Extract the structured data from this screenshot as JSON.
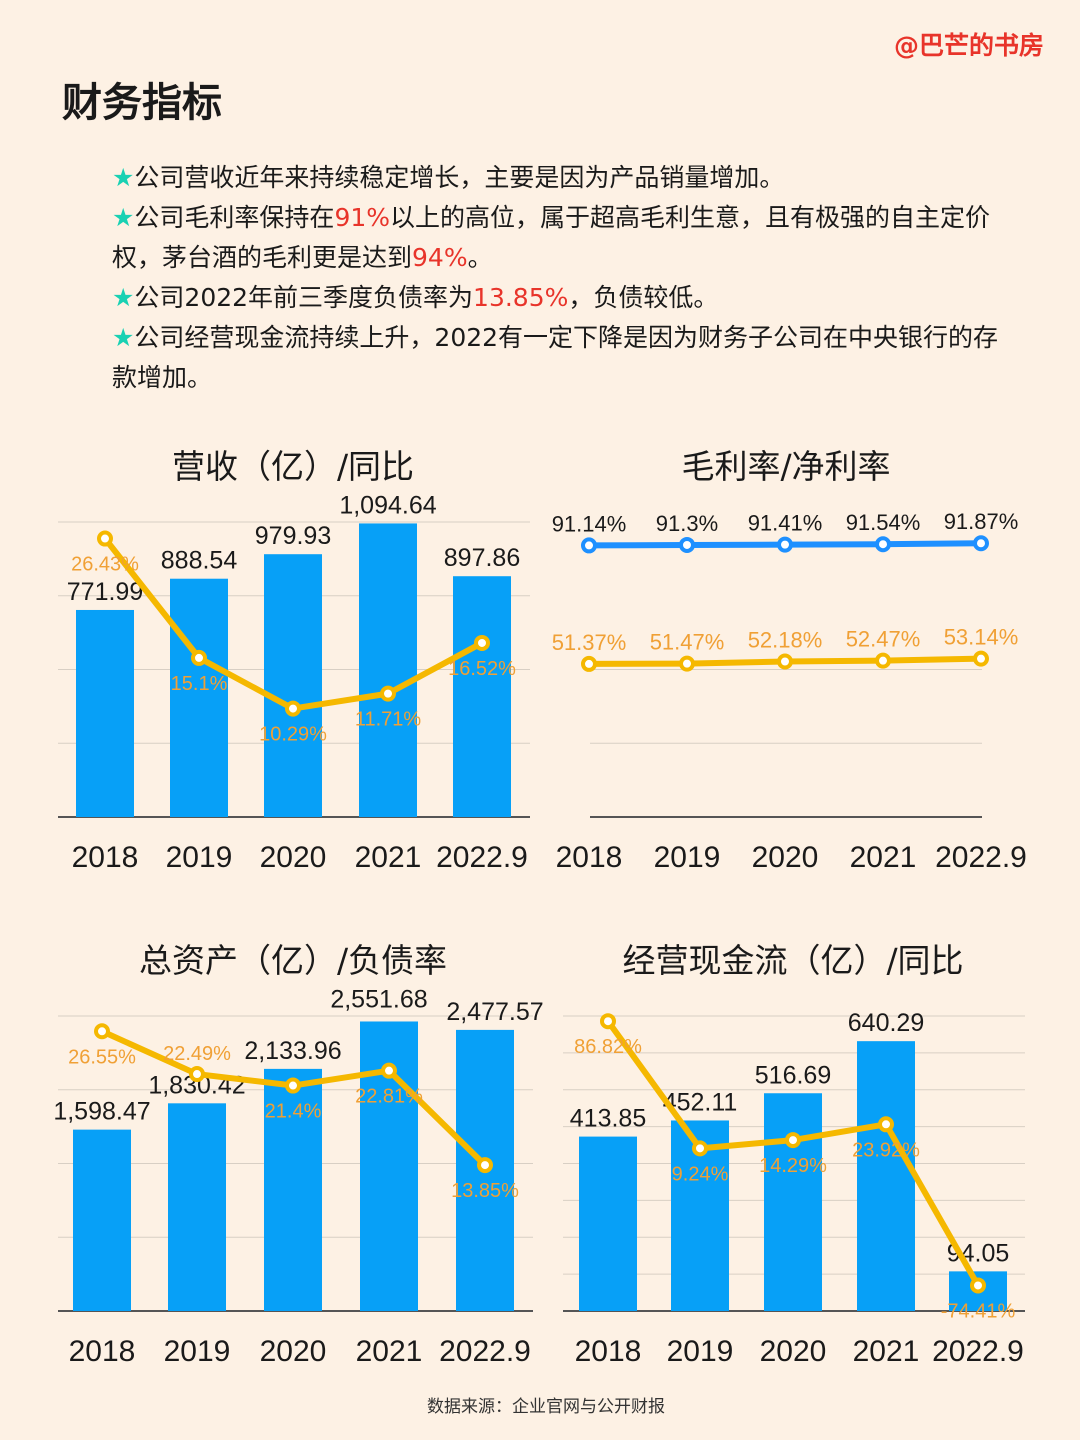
{
  "watermark": "@巴芒的书房",
  "page_title": "财务指标",
  "bullets": [
    {
      "parts": [
        {
          "t": "公司营收近年来持续稳定增长，主要是因为产品销量增加。"
        }
      ]
    },
    {
      "parts": [
        {
          "t": "公司毛利率保持在"
        },
        {
          "t": "91%",
          "hl": true
        },
        {
          "t": "以上的高位，属于超高毛利生意，且有极强的自主定价权，茅台酒的毛利更是达到"
        },
        {
          "t": "94%",
          "hl": true
        },
        {
          "t": "。"
        }
      ]
    },
    {
      "parts": [
        {
          "t": "公司2022年前三季度负债率为"
        },
        {
          "t": "13.85%",
          "hl": true
        },
        {
          "t": "，负债较低。"
        }
      ]
    },
    {
      "parts": [
        {
          "t": "公司经营现金流持续上升，2022有一定下降是因为财务子公司在中央银行的存款增加。"
        }
      ]
    }
  ],
  "bullet_icon": "star-icon",
  "colors": {
    "background": "#fdf1e4",
    "bar": "#07a0f7",
    "line": "#f5b800",
    "line_label": "#f0a035",
    "blue_line": "#1e90ff",
    "highlight": "#e8342a",
    "star": "#19d1b3"
  },
  "source": "数据来源：企业官网与公开财报",
  "chart_data": [
    {
      "type": "bar+line",
      "title": "营收（亿）/同比",
      "categories": [
        "2018",
        "2019",
        "2020",
        "2021",
        "2022.9"
      ],
      "bars": {
        "values": [
          771.99,
          888.54,
          979.93,
          1094.64,
          897.86
        ],
        "labels": [
          "771.99",
          "888.54",
          "979.93",
          "1,094.64",
          "897.86"
        ],
        "ylim": [
          0,
          1100
        ]
      },
      "line": {
        "values": [
          26.43,
          15.1,
          10.29,
          11.71,
          16.52
        ],
        "labels": [
          "26.43%",
          "15.1%",
          "10.29%",
          "11.71%",
          "16.52%"
        ],
        "ylim": [
          0,
          28
        ]
      },
      "grid": true
    },
    {
      "type": "line",
      "title": "毛利率/净利率",
      "categories": [
        "2018",
        "2019",
        "2020",
        "2021",
        "2022.9"
      ],
      "series": [
        {
          "values": [
            91.14,
            91.3,
            91.41,
            91.54,
            91.87
          ],
          "labels": [
            "91.14%",
            "91.3%",
            "91.41%",
            "91.54%",
            "91.87%"
          ],
          "color": "#1e90ff"
        },
        {
          "values": [
            51.37,
            51.47,
            52.18,
            52.47,
            53.14
          ],
          "labels": [
            "51.37%",
            "51.47%",
            "52.18%",
            "52.47%",
            "53.14%"
          ],
          "color": "#f5b800"
        }
      ],
      "ylim": [
        0,
        99
      ],
      "grid": true
    },
    {
      "type": "bar+line",
      "title": "总资产（亿）/负债率",
      "categories": [
        "2018",
        "2019",
        "2020",
        "2021",
        "2022.9"
      ],
      "bars": {
        "values": [
          1598.47,
          1830.42,
          2133.96,
          2551.68,
          2477.57
        ],
        "labels": [
          "1,598.47",
          "1,830.42",
          "2,133.96",
          "2,551.68",
          "2,477.57"
        ],
        "ylim": [
          0,
          2600
        ]
      },
      "line": {
        "values": [
          26.55,
          22.49,
          21.4,
          22.81,
          13.85
        ],
        "labels": [
          "26.55%",
          "22.49%",
          "21.4%",
          "22.81%",
          "13.85%"
        ],
        "ylim": [
          0,
          28
        ]
      },
      "grid": true
    },
    {
      "type": "bar+line",
      "title": "经营现金流（亿）/同比",
      "categories": [
        "2018",
        "2019",
        "2020",
        "2021",
        "2022.9"
      ],
      "bars": {
        "values": [
          413.85,
          452.11,
          516.69,
          640.29,
          94.05
        ],
        "labels": [
          "413.85",
          "452.11",
          "516.69",
          "640.29",
          "94.05"
        ],
        "ylim": [
          0,
          700
        ]
      },
      "line": {
        "values": [
          86.82,
          9.24,
          14.29,
          23.92,
          -74.41
        ],
        "labels": [
          "86.82%",
          "9.24%",
          "14.29%",
          "23.92%",
          "-74.41%"
        ],
        "ylim": [
          -90,
          90
        ]
      },
      "grid": true
    }
  ]
}
